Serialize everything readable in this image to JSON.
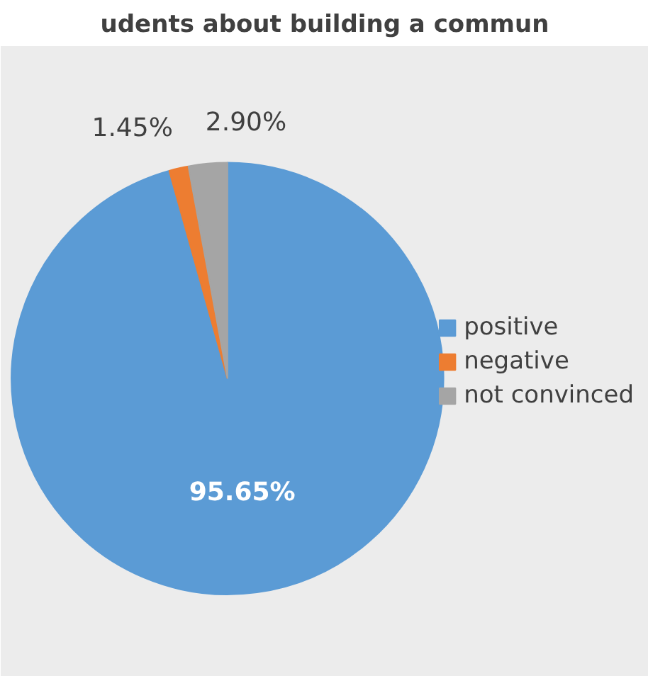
{
  "chart_data": {
    "type": "pie",
    "title": "udents about building a commun",
    "categories": [
      "positive",
      "negative",
      "not convinced"
    ],
    "values": [
      95.65,
      1.45,
      2.9
    ],
    "colors": [
      "#5b9bd5",
      "#ed7d31",
      "#a5a5a5"
    ],
    "value_labels": [
      "95.65%",
      "1.45%",
      "2.90%"
    ],
    "legend": "right"
  }
}
